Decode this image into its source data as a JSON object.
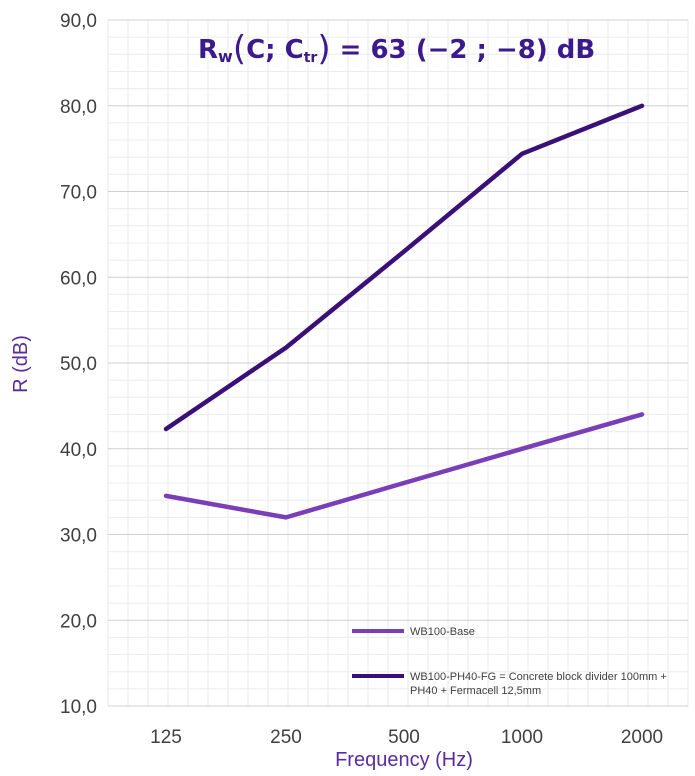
{
  "chart_data": {
    "type": "line",
    "title": "R",
    "title_sub": "w",
    "title_paren_open": "(",
    "title_c": "C; C",
    "title_c_sub": "tr",
    "title_paren_close": ")",
    "title_value": " = 63 ",
    "title_terms": "(−2 ; −8)",
    "title_unit": " dB",
    "xlabel": "Frequency (Hz)",
    "ylabel": "R (dB)",
    "categories": [
      "125",
      "250",
      "500",
      "1000",
      "2000"
    ],
    "ylim": [
      10,
      90
    ],
    "yticks": [
      "10,0",
      "20,0",
      "30,0",
      "40,0",
      "50,0",
      "60,0",
      "70,0",
      "80,0",
      "90,0"
    ],
    "grid": true,
    "legend_position": "bottom-right",
    "series": [
      {
        "name": "WB100-Base",
        "color": "#7a3fb8",
        "values": [
          34.5,
          32.0,
          36.0,
          40.0,
          44.0
        ]
      },
      {
        "name": "WB100-PH40-FG = Concrete block divider 100mm + PH40 + Fermacell 12,5mm",
        "name_line1": "WB100-PH40-FG = Concrete block divider 100mm +",
        "name_line2": "PH40 + Fermacell 12,5mm",
        "color": "#3a1078",
        "values": [
          42.3,
          51.8,
          63.0,
          74.4,
          80.0
        ]
      }
    ]
  }
}
